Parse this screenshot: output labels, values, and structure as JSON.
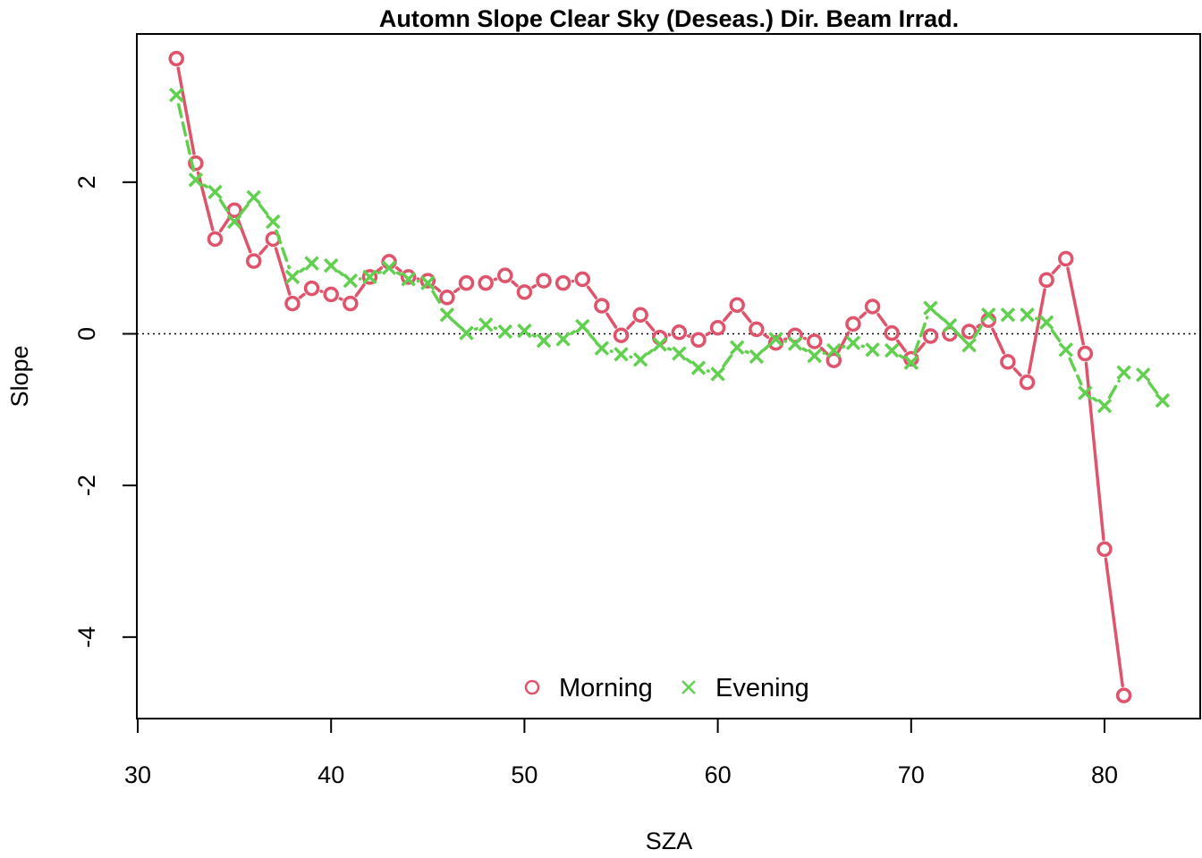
{
  "chart_data": {
    "type": "line",
    "title": "Automn Slope Clear Sky (Deseas.) Dir. Beam Irrad.",
    "xlabel": "SZA",
    "ylabel": "Slope",
    "xlim": [
      30,
      85
    ],
    "ylim": [
      -5,
      4
    ],
    "xticks": [
      "30",
      "40",
      "50",
      "60",
      "70",
      "80"
    ],
    "xtick_values": [
      30,
      40,
      50,
      60,
      70,
      80
    ],
    "yticks": [
      "-4",
      "-2",
      "0",
      "2"
    ],
    "ytick_values": [
      -4,
      -2,
      0,
      2
    ],
    "reference_line": 0,
    "legend_position": "bottom-center",
    "series": [
      {
        "name": "Morning",
        "marker": "circle",
        "color": "#DF536B",
        "x": [
          32,
          33,
          34,
          35,
          36,
          37,
          38,
          39,
          40,
          41,
          42,
          43,
          44,
          45,
          46,
          47,
          48,
          49,
          50,
          51,
          52,
          53,
          54,
          55,
          56,
          57,
          58,
          59,
          60,
          61,
          62,
          63,
          64,
          65,
          66,
          67,
          68,
          69,
          70,
          71,
          72,
          73,
          74,
          75,
          76,
          77,
          78,
          79,
          80,
          81
        ],
        "y": [
          3.63,
          2.25,
          1.25,
          1.63,
          0.96,
          1.25,
          0.4,
          0.6,
          0.52,
          0.4,
          0.75,
          0.95,
          0.75,
          0.7,
          0.48,
          0.67,
          0.67,
          0.77,
          0.55,
          0.7,
          0.67,
          0.72,
          0.37,
          -0.02,
          0.25,
          -0.05,
          0.02,
          -0.08,
          0.08,
          0.38,
          0.06,
          -0.12,
          -0.02,
          -0.1,
          -0.35,
          0.13,
          0.36,
          0.01,
          -0.33,
          -0.03,
          0.0,
          0.03,
          0.18,
          -0.37,
          -0.64,
          0.71,
          0.99,
          -0.26,
          -2.84,
          -4.77
        ]
      },
      {
        "name": "Evening",
        "marker": "cross",
        "color": "#61D04F",
        "x": [
          32,
          33,
          34,
          35,
          36,
          37,
          38,
          39,
          40,
          41,
          42,
          43,
          44,
          45,
          46,
          47,
          48,
          49,
          50,
          51,
          52,
          53,
          54,
          55,
          56,
          57,
          58,
          59,
          60,
          61,
          62,
          63,
          64,
          65,
          66,
          67,
          68,
          69,
          70,
          71,
          72,
          73,
          74,
          75,
          76,
          77,
          78,
          79,
          80,
          81,
          82,
          83
        ],
        "y": [
          3.15,
          2.03,
          1.87,
          1.48,
          1.8,
          1.48,
          0.75,
          0.93,
          0.9,
          0.7,
          0.75,
          0.87,
          0.72,
          0.67,
          0.25,
          0.01,
          0.12,
          0.03,
          0.04,
          -0.09,
          -0.07,
          0.1,
          -0.19,
          -0.27,
          -0.34,
          -0.14,
          -0.26,
          -0.45,
          -0.53,
          -0.18,
          -0.3,
          -0.07,
          -0.13,
          -0.29,
          -0.22,
          -0.12,
          -0.21,
          -0.22,
          -0.38,
          0.34,
          0.11,
          -0.15,
          0.25,
          0.25,
          0.25,
          0.15,
          -0.21,
          -0.78,
          -0.95,
          -0.51,
          -0.54,
          -0.88
        ]
      }
    ]
  }
}
